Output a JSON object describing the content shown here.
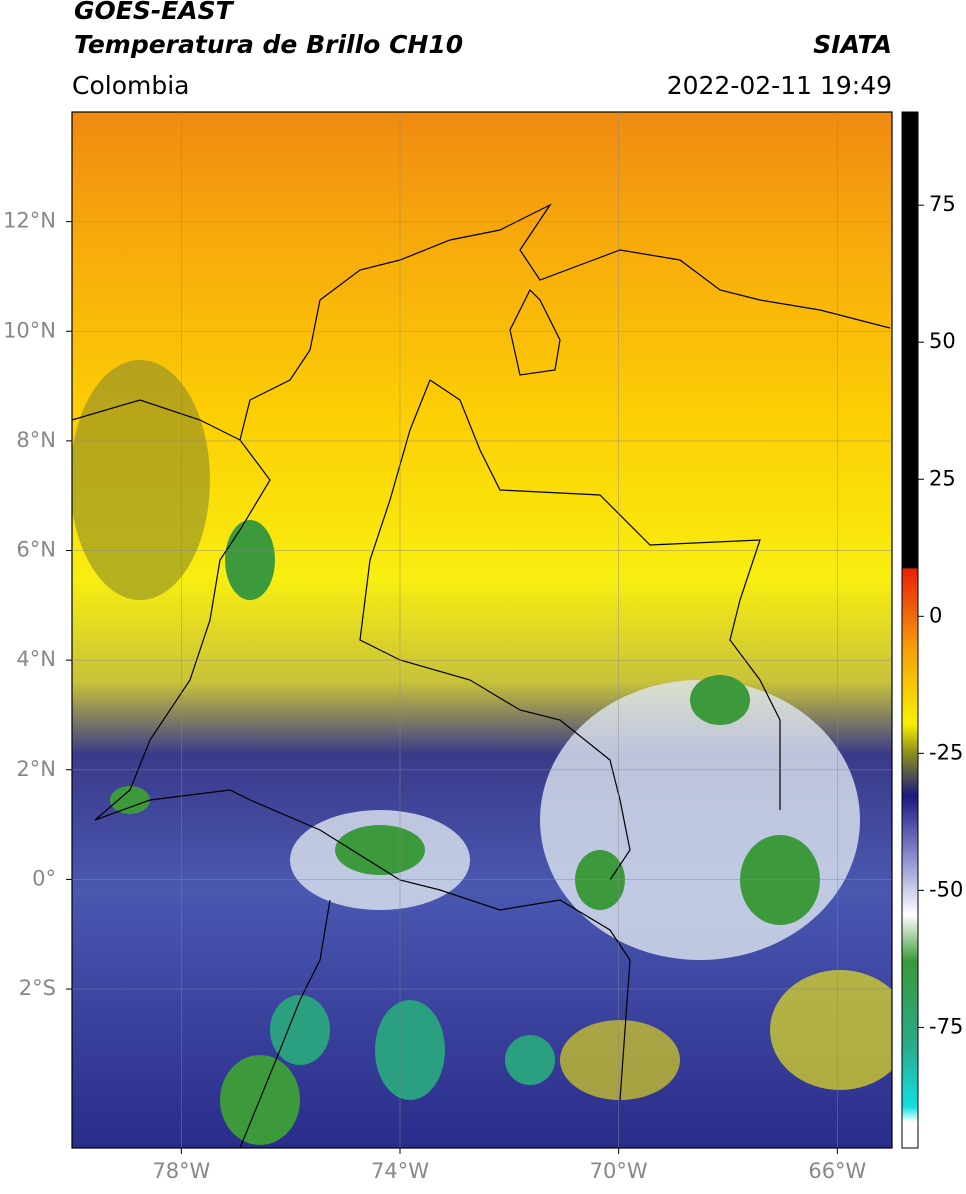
{
  "header": {
    "title": "GOES-EAST",
    "subtitle": "Temperatura de Brillo CH10",
    "source": "SIATA",
    "region": "Colombia",
    "datetime": "2022-02-11 19:49"
  },
  "map": {
    "xlim": [
      -80,
      -65
    ],
    "ylim": [
      -4.9,
      14
    ],
    "grid": true,
    "xticks": [
      {
        "value": -78,
        "label": "78°W"
      },
      {
        "value": -74,
        "label": "74°W"
      },
      {
        "value": -70,
        "label": "70°W"
      },
      {
        "value": -66,
        "label": "66°W"
      }
    ],
    "yticks": [
      {
        "value": 12,
        "label": "12°N"
      },
      {
        "value": 10,
        "label": "10°N"
      },
      {
        "value": 8,
        "label": "8°N"
      },
      {
        "value": 6,
        "label": "6°N"
      },
      {
        "value": 4,
        "label": "4°N"
      },
      {
        "value": 2,
        "label": "2°N"
      },
      {
        "value": 0,
        "label": "0°"
      },
      {
        "value": -2,
        "label": "2°S"
      }
    ]
  },
  "colorbar": {
    "lim": [
      -97,
      92
    ],
    "ticks": [
      75,
      50,
      25,
      0,
      -25,
      -50,
      -75
    ]
  }
}
